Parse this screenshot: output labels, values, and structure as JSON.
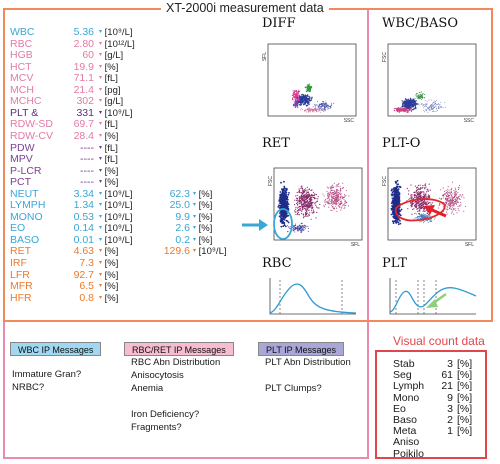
{
  "title": "XT-2000i measurement data",
  "params": [
    {
      "name": "WBC",
      "value": "5.36",
      "unit": "[10⁹/L]",
      "color": "#3aa7d6"
    },
    {
      "name": "RBC",
      "value": "2.80",
      "unit": "[10¹²/L]",
      "color": "#e27ba6"
    },
    {
      "name": "HGB",
      "value": "60",
      "unit": "[g/L]",
      "color": "#e27ba6"
    },
    {
      "name": "HCT",
      "value": "19.9",
      "unit": "[%]",
      "color": "#e27ba6"
    },
    {
      "name": "MCV",
      "value": "71.1",
      "unit": "[fL]",
      "color": "#e27ba6"
    },
    {
      "name": "MCH",
      "value": "21.4",
      "unit": "[pg]",
      "color": "#e27ba6"
    },
    {
      "name": "MCHC",
      "value": "302",
      "unit": "[g/L]",
      "color": "#e27ba6"
    },
    {
      "name": "PLT  &",
      "value": "331",
      "unit": "[10⁹/L]",
      "color": "#5d2f84"
    },
    {
      "name": "RDW-SD",
      "value": "69.7",
      "unit": "[fL]",
      "color": "#e27ba6"
    },
    {
      "name": "RDW-CV",
      "value": "28.4",
      "unit": "[%]",
      "color": "#e27ba6"
    },
    {
      "name": "PDW",
      "value": "----",
      "unit": "[fL]",
      "color": "#7b3f92"
    },
    {
      "name": "MPV",
      "value": "----",
      "unit": "[fL]",
      "color": "#7b3f92"
    },
    {
      "name": "P-LCR",
      "value": "----",
      "unit": "[%]",
      "color": "#7b3f92"
    },
    {
      "name": "PCT",
      "value": "----",
      "unit": "[%]",
      "color": "#7b3f92"
    },
    {
      "name": "NEUT",
      "value": "3.34",
      "unit": "[10⁹/L]",
      "value2": "62.3",
      "unit2": "[%]",
      "color": "#3aa7d6"
    },
    {
      "name": "LYMPH",
      "value": "1.34",
      "unit": "[10⁹/L]",
      "value2": "25.0",
      "unit2": "[%]",
      "color": "#3aa7d6"
    },
    {
      "name": "MONO",
      "value": "0.53",
      "unit": "[10⁹/L]",
      "value2": "9.9",
      "unit2": "[%]",
      "color": "#3aa7d6"
    },
    {
      "name": "EO",
      "value": "0.14",
      "unit": "[10⁹/L]",
      "value2": "2.6",
      "unit2": "[%]",
      "color": "#3aa7d6"
    },
    {
      "name": "BASO",
      "value": "0.01",
      "unit": "[10⁹/L]",
      "value2": "0.2",
      "unit2": "[%]",
      "color": "#3aa7d6"
    },
    {
      "name": "RET",
      "value": "4.63",
      "unit": "[%]",
      "value2": "129.6",
      "unit2": "[10⁹/L]",
      "color": "#ea7a2c"
    },
    {
      "name": "IRF",
      "value": "7.3",
      "unit": "[%]",
      "color": "#ea7a2c"
    },
    {
      "name": "LFR",
      "value": "92.7",
      "unit": "[%]",
      "color": "#ea7a2c"
    },
    {
      "name": "MFR",
      "value": "6.5",
      "unit": "[%]",
      "color": "#ea7a2c"
    },
    {
      "name": "HFR",
      "value": "0.8",
      "unit": "[%]",
      "color": "#ea7a2c"
    }
  ],
  "plots": [
    {
      "title": "DIFF",
      "y_axis": "SFL",
      "x_axis": "SSC"
    },
    {
      "title": "WBC/BASO",
      "y_axis": "FSC",
      "x_axis": "SSC"
    },
    {
      "title": "RET",
      "y_axis": "FSC",
      "x_axis": "SFL"
    },
    {
      "title": "PLT-O",
      "y_axis": "FSC",
      "x_axis": "SFL"
    },
    {
      "title": "RBC"
    },
    {
      "title": "PLT"
    }
  ],
  "ip_messages": {
    "wbc": {
      "label": "WBC IP Messages",
      "color": "#9fd8f0",
      "items": [
        "Immature Gran?",
        "NRBC?"
      ]
    },
    "rbc": {
      "label": "RBC/RET IP Messages",
      "color": "#f6bcd0",
      "items": [
        "RBC Abn Distribution",
        "Anisocytosis",
        "Anemia",
        "",
        "Iron Deficiency?",
        "Fragments?"
      ]
    },
    "plt": {
      "label": "PLT IP Messages",
      "color": "#a9a6d8",
      "items": [
        "PLT Abn Distribution",
        "",
        "PLT Clumps?"
      ]
    }
  },
  "visual_count": {
    "title": "Visual count data",
    "rows": [
      {
        "name": "Stab",
        "count": "3",
        "unit": "[%]"
      },
      {
        "name": "Seg",
        "count": "61",
        "unit": "[%]"
      },
      {
        "name": "Lymph",
        "count": "21",
        "unit": "[%]"
      },
      {
        "name": "Mono",
        "count": "9",
        "unit": "[%]"
      },
      {
        "name": "Eo",
        "count": "3",
        "unit": "[%]"
      },
      {
        "name": "Baso",
        "count": "2",
        "unit": "[%]"
      },
      {
        "name": "Meta",
        "count": "1",
        "unit": "[%]"
      },
      {
        "name": "Aniso",
        "count": "",
        "unit": ""
      },
      {
        "name": "Poikilo",
        "count": "",
        "unit": ""
      }
    ]
  },
  "colors": {
    "main_frame": "#f08a5a",
    "pink_frame": "#e98bb0",
    "visual_frame": "#e0474c",
    "arrow_blue": "#3aa7d6",
    "arrow_red": "#e0202a"
  }
}
